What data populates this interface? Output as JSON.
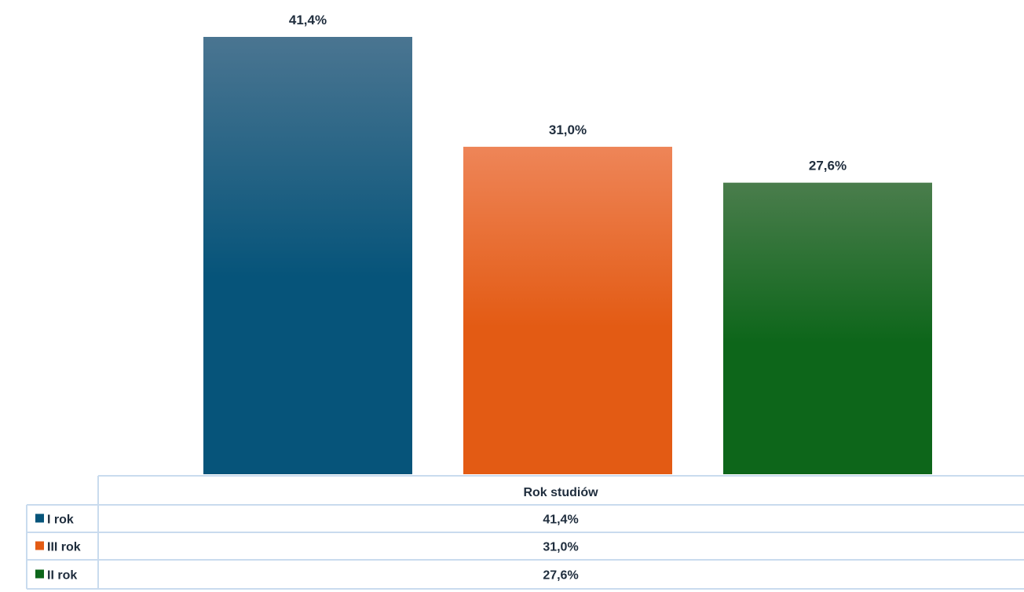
{
  "chart_data": {
    "type": "bar",
    "categories": [
      "I rok",
      "III rok",
      "II rok"
    ],
    "values": [
      41.4,
      31.0,
      27.6
    ],
    "value_labels": [
      "41,4%",
      "31,0%",
      "27,6%"
    ],
    "ylim": [
      0,
      41.4
    ],
    "data_table": {
      "header": "Rok studiów",
      "rows": [
        {
          "label": "I rok",
          "value": "41,4%"
        },
        {
          "label": "III rok",
          "value": "31,0%"
        },
        {
          "label": "II rok",
          "value": "27,6%"
        }
      ]
    },
    "colors": [
      {
        "top": "#4a7591",
        "bottom": "#06547a"
      },
      {
        "top": "#ee8558",
        "bottom": "#e35b14"
      },
      {
        "top": "#4a7d4c",
        "bottom": "#0d661a"
      }
    ],
    "legend_placement": "table-left",
    "grid": false
  }
}
